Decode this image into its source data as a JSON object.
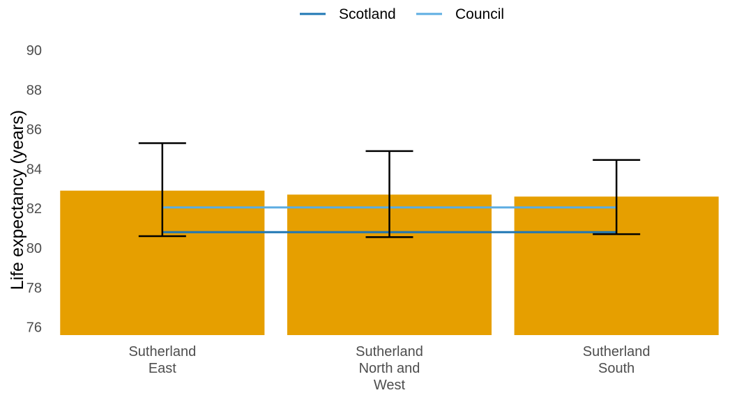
{
  "chart_data": {
    "type": "bar",
    "categories": [
      [
        "Sutherland",
        "East"
      ],
      [
        "Sutherland",
        "North and",
        "West"
      ],
      [
        "Sutherland",
        "South"
      ]
    ],
    "values": [
      82.9,
      82.7,
      82.6
    ],
    "error_bars": [
      {
        "low": 80.6,
        "high": 85.3
      },
      {
        "low": 80.55,
        "high": 84.9
      },
      {
        "low": 80.7,
        "high": 84.45
      }
    ],
    "reference_lines": [
      {
        "name": "Scotland",
        "value": 80.8,
        "color": "#1f77b4"
      },
      {
        "name": "Council",
        "value": 82.05,
        "color": "#5dade2"
      }
    ],
    "ylabel": "Life expectancy (years)",
    "xlabel": "",
    "ylim": [
      75.6,
      90
    ],
    "yticks": [
      76,
      78,
      80,
      82,
      84,
      86,
      88,
      90
    ],
    "bar_color": "#e69f00",
    "grid": false,
    "legend_position": "top"
  }
}
